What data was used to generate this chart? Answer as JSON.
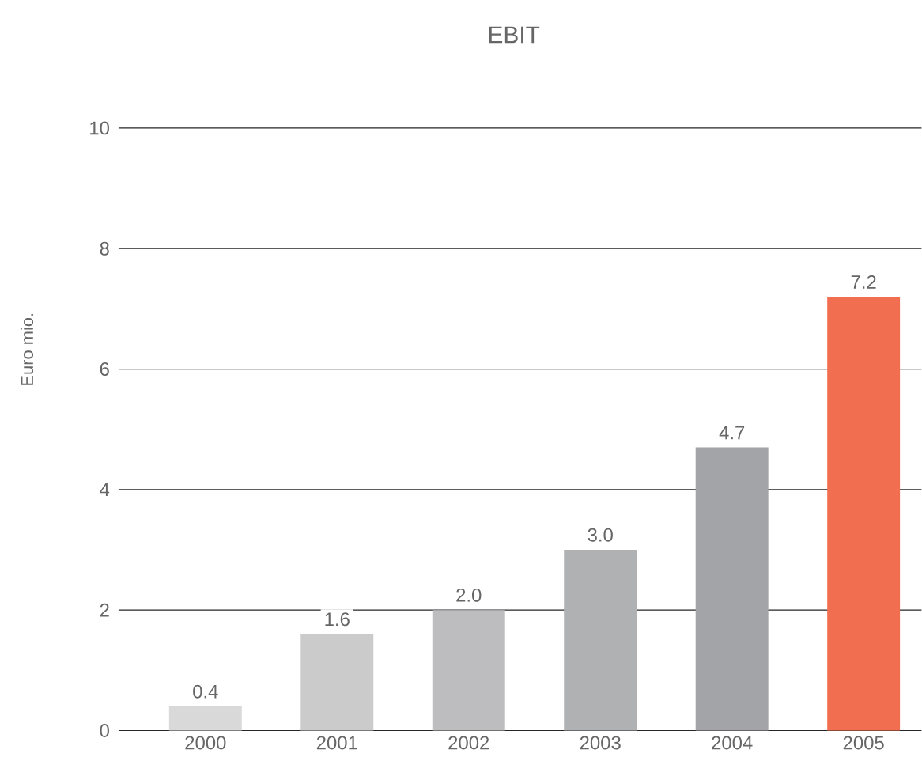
{
  "chart_data": {
    "type": "bar",
    "title": "EBIT",
    "ylabel": "Euro mio.",
    "categories": [
      "2000",
      "2001",
      "2002",
      "2003",
      "2004",
      "2005"
    ],
    "values": [
      0.4,
      1.6,
      2.0,
      3.0,
      4.7,
      7.2
    ],
    "value_labels": [
      "0.4",
      "1.6",
      "2.0",
      "3.0",
      "4.7",
      "7.2"
    ],
    "colors": [
      "#d9d9da",
      "#cbcbcc",
      "#bdbdbf",
      "#b0b1b3",
      "#a3a4a7",
      "#f26e50"
    ],
    "ylim": [
      0,
      10
    ],
    "yticks": [
      0,
      2,
      4,
      6,
      8,
      10
    ],
    "grid": "y"
  }
}
